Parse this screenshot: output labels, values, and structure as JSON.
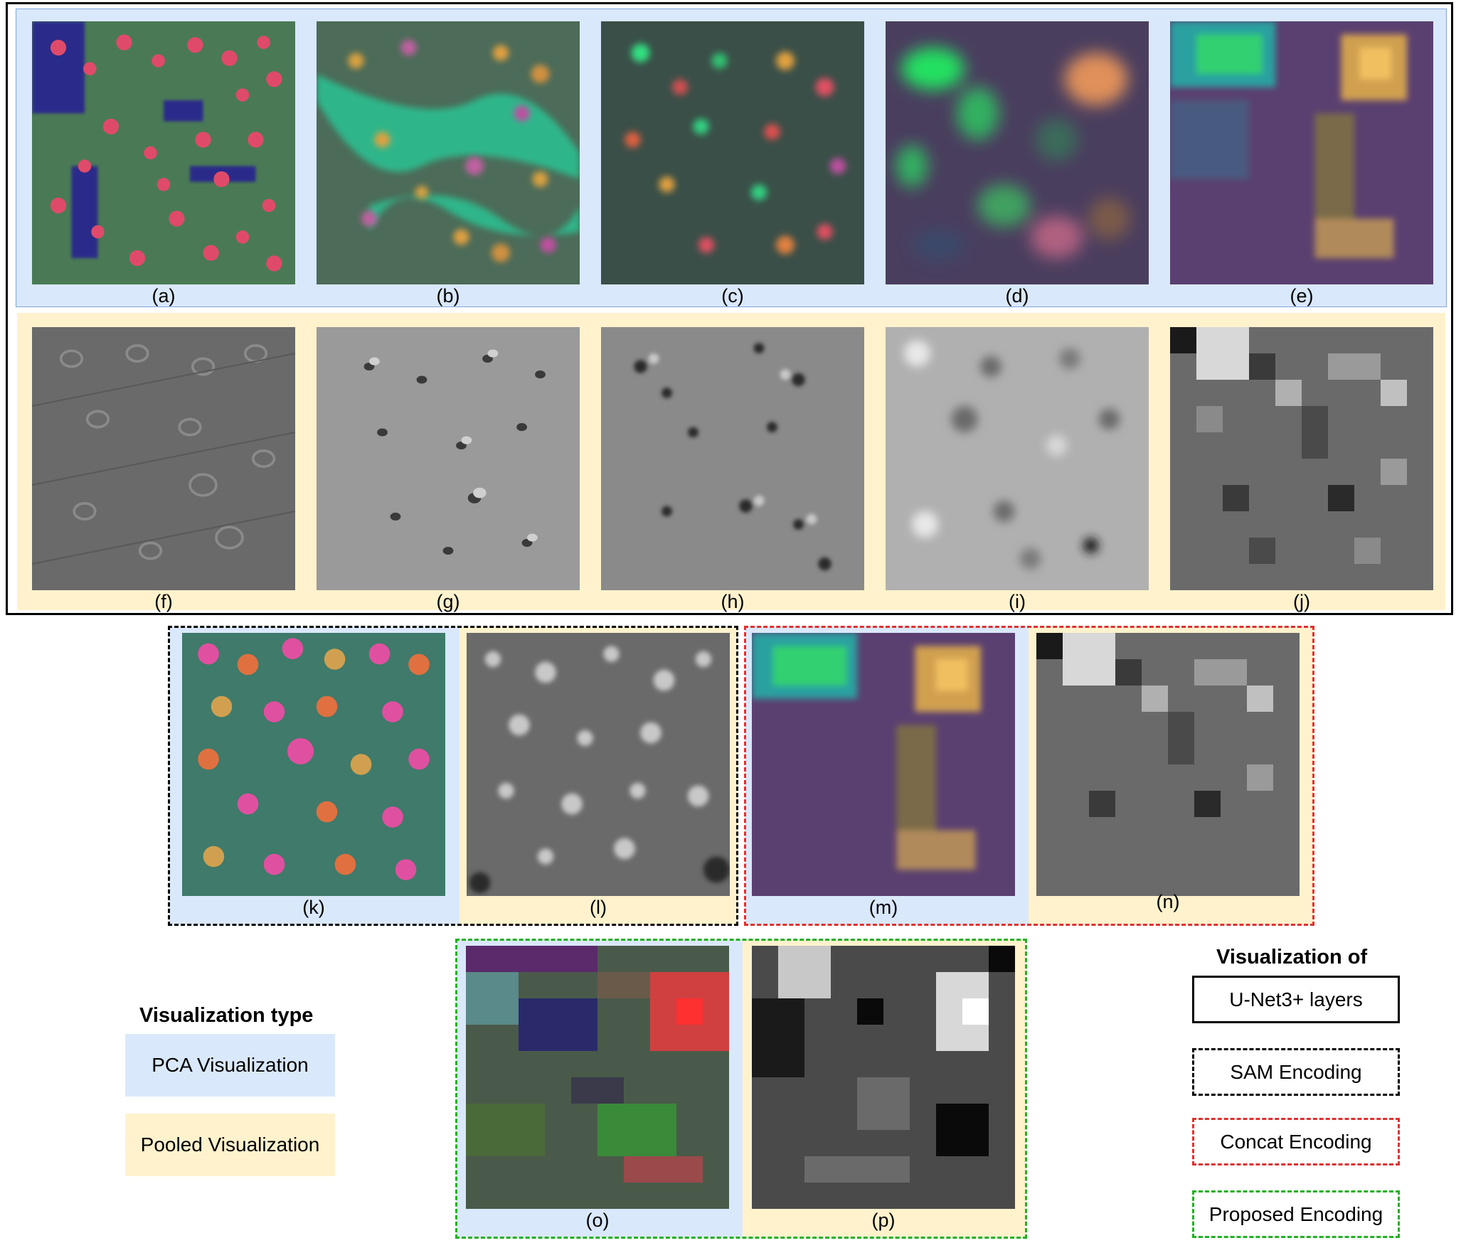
{
  "panels": {
    "a": "(a)",
    "b": "(b)",
    "c": "(c)",
    "d": "(d)",
    "e": "(e)",
    "f": "(f)",
    "g": "(g)",
    "h": "(h)",
    "i": "(i)",
    "j": "(j)",
    "k": "(k)",
    "l": "(l)",
    "m": "(m)",
    "n": "(n)",
    "o": "(o)",
    "p": "(p)"
  },
  "legend_type": {
    "title": "Visualization type",
    "pca": "PCA Visualization",
    "pooled": "Pooled Visualization",
    "colors": {
      "pca": "#dae8fc",
      "pooled": "#fff2cc"
    }
  },
  "legend_of": {
    "title": "Visualization of",
    "unet": "U-Net3+ layers",
    "sam": "SAM Encoding",
    "concat": "Concat Encoding",
    "proposed": "Proposed Encoding",
    "colors": {
      "unet": "#000000",
      "sam": "#000000",
      "concat": "#e03030",
      "proposed": "#22b022"
    }
  }
}
